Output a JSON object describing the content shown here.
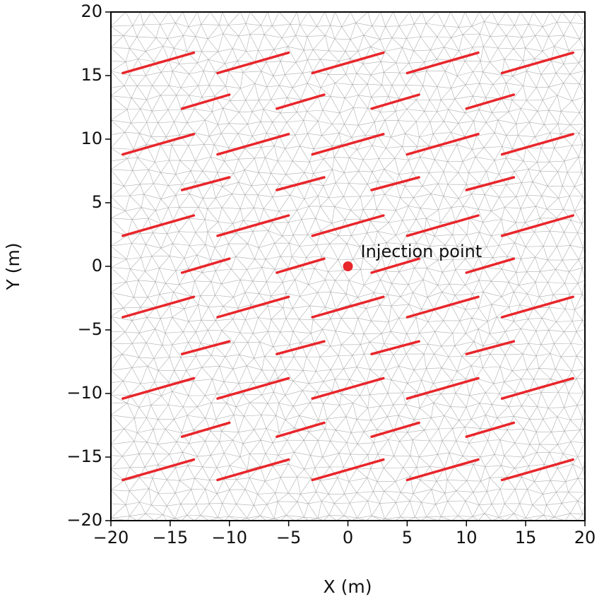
{
  "chart_data": {
    "type": "fracture-map",
    "xlabel": "X (m)",
    "ylabel": "Y (m)",
    "xlim": [
      -20,
      20
    ],
    "ylim": [
      -20,
      20
    ],
    "xticks": [
      {
        "value": -20,
        "label": "−20"
      },
      {
        "value": -15,
        "label": "−15"
      },
      {
        "value": -10,
        "label": "−10"
      },
      {
        "value": -5,
        "label": "−5"
      },
      0,
      5,
      10,
      15,
      20
    ],
    "yticks": [
      {
        "value": -20,
        "label": "−20"
      },
      {
        "value": -15,
        "label": "−15"
      },
      {
        "value": -10,
        "label": "−10"
      },
      {
        "value": -5,
        "label": "−5"
      },
      0,
      5,
      10,
      15,
      20
    ],
    "fracture_color": "#e8262b",
    "fractures": [
      [
        -19,
        15.2,
        -13,
        16.8
      ],
      [
        -11,
        15.2,
        -5,
        16.8
      ],
      [
        -3,
        15.2,
        3,
        16.8
      ],
      [
        5,
        15.2,
        11,
        16.8
      ],
      [
        13,
        15.2,
        19,
        16.8
      ],
      [
        -19,
        8.8,
        -13,
        10.4
      ],
      [
        -11,
        8.8,
        -5,
        10.4
      ],
      [
        -3,
        8.8,
        3,
        10.4
      ],
      [
        5,
        8.8,
        11,
        10.4
      ],
      [
        13,
        8.8,
        19,
        10.4
      ],
      [
        -19,
        2.4,
        -13,
        4.0
      ],
      [
        -11,
        2.4,
        -5,
        4.0
      ],
      [
        -3,
        2.4,
        3,
        4.0
      ],
      [
        5,
        2.4,
        11,
        4.0
      ],
      [
        13,
        2.4,
        19,
        4.0
      ],
      [
        -19,
        -4.0,
        -13,
        -2.4
      ],
      [
        -11,
        -4.0,
        -5,
        -2.4
      ],
      [
        -3,
        -4.0,
        3,
        -2.4
      ],
      [
        5,
        -4.0,
        11,
        -2.4
      ],
      [
        13,
        -4.0,
        19,
        -2.4
      ],
      [
        -19,
        -10.4,
        -13,
        -8.8
      ],
      [
        -11,
        -10.4,
        -5,
        -8.8
      ],
      [
        -3,
        -10.4,
        3,
        -8.8
      ],
      [
        5,
        -10.4,
        11,
        -8.8
      ],
      [
        13,
        -10.4,
        19,
        -8.8
      ],
      [
        -19,
        -16.8,
        -13,
        -15.2
      ],
      [
        -11,
        -16.8,
        -5,
        -15.2
      ],
      [
        -3,
        -16.8,
        3,
        -15.2
      ],
      [
        5,
        -16.8,
        11,
        -15.2
      ],
      [
        13,
        -16.8,
        19,
        -15.2
      ],
      [
        -14,
        12.4,
        -10,
        13.5
      ],
      [
        -6,
        12.4,
        -2,
        13.5
      ],
      [
        2,
        12.4,
        6,
        13.5
      ],
      [
        10,
        12.4,
        14,
        13.5
      ],
      [
        -14,
        6.0,
        -10,
        7.0
      ],
      [
        -6,
        6.0,
        -2,
        7.0
      ],
      [
        2,
        6.0,
        6,
        7.0
      ],
      [
        10,
        6.0,
        14,
        7.0
      ],
      [
        -14,
        -0.5,
        -10,
        0.6
      ],
      [
        -6,
        -0.5,
        -2,
        0.6
      ],
      [
        2,
        -0.5,
        6,
        0.6
      ],
      [
        10,
        -0.5,
        14,
        0.6
      ],
      [
        -14,
        -6.9,
        -10,
        -5.9
      ],
      [
        -6,
        -6.9,
        -2,
        -5.9
      ],
      [
        2,
        -6.9,
        6,
        -5.9
      ],
      [
        10,
        -6.9,
        14,
        -5.9
      ],
      [
        -14,
        -13.4,
        -10,
        -12.3
      ],
      [
        -6,
        -13.4,
        -2,
        -12.3
      ],
      [
        2,
        -13.4,
        6,
        -12.3
      ],
      [
        10,
        -13.4,
        14,
        -12.3
      ]
    ],
    "injection_point": {
      "x": 0,
      "y": 0,
      "label": "Injection point",
      "color": "#e8262b"
    }
  }
}
